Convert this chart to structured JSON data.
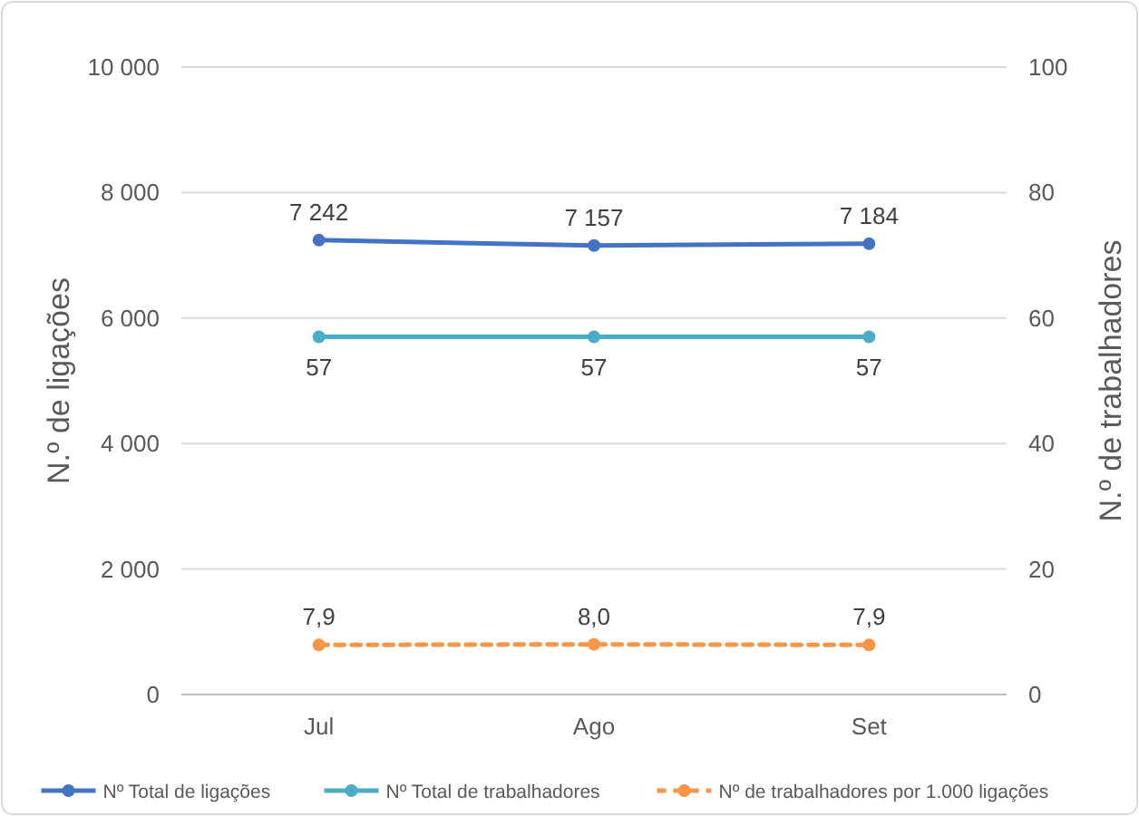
{
  "chart_data": {
    "type": "line",
    "categories": [
      "Jul",
      "Ago",
      "Set"
    ],
    "series": [
      {
        "name": "Nº Total de ligações",
        "color": "#4472c4",
        "values": [
          7242,
          7157,
          7184
        ],
        "value_labels": [
          "7 242",
          "7 157",
          "7 184"
        ]
      },
      {
        "name": "Nº Total de trabalhadores",
        "color": "#4bacc6",
        "values": [
          57,
          57,
          57
        ],
        "value_labels": [
          "57",
          "57",
          "57"
        ],
        "axis": "y2"
      },
      {
        "name": "Nº de trabalhadores por 1.000 ligações",
        "color": "#f79646",
        "values": [
          7.9,
          8.0,
          7.9
        ],
        "value_labels": [
          "7,9",
          "8,0",
          "7,9"
        ],
        "axis": "y2",
        "line_style": "dashed"
      }
    ],
    "ylabel": "N.º de ligações",
    "y2label": "N.º de trabalhadores",
    "ylim": [
      0,
      10000
    ],
    "yticks": [
      0,
      {
        "value": 2000,
        "label": "2 000"
      },
      {
        "value": 4000,
        "label": "4 000"
      },
      {
        "value": 6000,
        "label": "6 000"
      },
      {
        "value": 8000,
        "label": "8 000"
      },
      {
        "value": 10000,
        "label": "10 000"
      }
    ],
    "y2lim": [
      0,
      100
    ],
    "y2ticks": [
      0,
      20,
      40,
      60,
      80,
      100
    ],
    "grid": "y",
    "legend": "bottom",
    "marker": "circle",
    "line_style": "solid"
  }
}
